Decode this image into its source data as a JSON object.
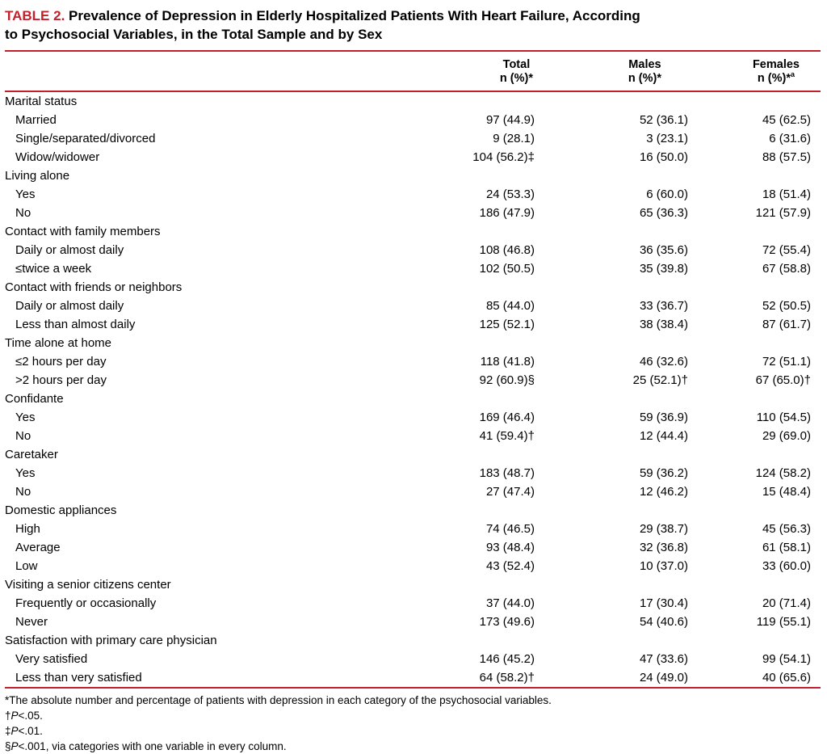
{
  "colors": {
    "accent": "#c2202c",
    "text": "#000000",
    "background": "#ffffff"
  },
  "title": {
    "label": "TABLE 2.",
    "line1": " Prevalence of Depression in Elderly Hospitalized Patients With Heart Failure, According",
    "line2": "to Psychosocial Variables, in the Total Sample and by Sex"
  },
  "table": {
    "columns": {
      "total": {
        "line1": "Total",
        "line2": "n (%)*",
        "sup": ""
      },
      "males": {
        "line1": "Males",
        "line2": "n (%)*",
        "sup": ""
      },
      "females": {
        "line1": "Females",
        "line2": "n (%)*",
        "sup": "a"
      }
    },
    "rows": [
      {
        "type": "group",
        "label": "Marital status"
      },
      {
        "type": "item",
        "label": "Married",
        "total": "97 (44.9)",
        "males": "52 (36.1)",
        "females": "45 (62.5)"
      },
      {
        "type": "item",
        "label": "Single/separated/divorced",
        "total": "9 (28.1)",
        "males": "3 (23.1)",
        "females": "6 (31.6)"
      },
      {
        "type": "item",
        "label": "Widow/widower",
        "total": "104 (56.2)‡",
        "males": "16 (50.0)",
        "females": "88 (57.5)"
      },
      {
        "type": "group",
        "label": "Living alone"
      },
      {
        "type": "item",
        "label": "Yes",
        "total": "24 (53.3)",
        "males": "6 (60.0)",
        "females": "18 (51.4)"
      },
      {
        "type": "item",
        "label": "No",
        "total": "186 (47.9)",
        "males": "65 (36.3)",
        "females": "121 (57.9)"
      },
      {
        "type": "group",
        "label": "Contact with family members"
      },
      {
        "type": "item",
        "label": "Daily or almost daily",
        "total": "108 (46.8)",
        "males": "36 (35.6)",
        "females": "72 (55.4)"
      },
      {
        "type": "item",
        "label": "≤twice a week",
        "total": "102 (50.5)",
        "males": "35 (39.8)",
        "females": "67 (58.8)"
      },
      {
        "type": "group",
        "label": "Contact with friends or neighbors"
      },
      {
        "type": "item",
        "label": "Daily or almost daily",
        "total": "85 (44.0)",
        "males": "33 (36.7)",
        "females": "52 (50.5)"
      },
      {
        "type": "item",
        "label": "Less than almost daily",
        "total": "125 (52.1)",
        "males": "38 (38.4)",
        "females": "87 (61.7)"
      },
      {
        "type": "group",
        "label": "Time alone at home"
      },
      {
        "type": "item",
        "label": "≤2 hours per day",
        "total": "118 (41.8)",
        "males": "46 (32.6)",
        "females": "72 (51.1)"
      },
      {
        "type": "item",
        "label": ">2 hours per day",
        "total": "92 (60.9)§",
        "males": "25 (52.1)†",
        "females": "67 (65.0)†"
      },
      {
        "type": "group",
        "label": "Confidante"
      },
      {
        "type": "item",
        "label": "Yes",
        "total": "169 (46.4)",
        "males": "59 (36.9)",
        "females": "110 (54.5)"
      },
      {
        "type": "item",
        "label": "No",
        "total": "41 (59.4)†",
        "males": "12 (44.4)",
        "females": "29 (69.0)"
      },
      {
        "type": "group",
        "label": "Caretaker"
      },
      {
        "type": "item",
        "label": "Yes",
        "total": "183 (48.7)",
        "males": "59 (36.2)",
        "females": "124 (58.2)"
      },
      {
        "type": "item",
        "label": "No",
        "total": "27 (47.4)",
        "males": "12 (46.2)",
        "females": "15 (48.4)"
      },
      {
        "type": "group",
        "label": "Domestic appliances"
      },
      {
        "type": "item",
        "label": "High",
        "total": "74 (46.5)",
        "males": "29 (38.7)",
        "females": "45 (56.3)"
      },
      {
        "type": "item",
        "label": "Average",
        "total": "93 (48.4)",
        "males": "32 (36.8)",
        "females": "61 (58.1)"
      },
      {
        "type": "item",
        "label": "Low",
        "total": "43 (52.4)",
        "males": "10 (37.0)",
        "females": "33 (60.0)"
      },
      {
        "type": "group",
        "label": "Visiting a senior citizens center"
      },
      {
        "type": "item",
        "label": "Frequently or occasionally",
        "total": "37 (44.0)",
        "males": "17 (30.4)",
        "females": "20 (71.4)"
      },
      {
        "type": "item",
        "label": "Never",
        "total": "173 (49.6)",
        "males": "54 (40.6)",
        "females": "119 (55.1)"
      },
      {
        "type": "group",
        "label": "Satisfaction with primary care physician"
      },
      {
        "type": "item",
        "label": "Very satisfied",
        "total": "146 (45.2)",
        "males": "47 (33.6)",
        "females": "99 (54.1)"
      },
      {
        "type": "item",
        "label": "Less than very satisfied",
        "total": "64 (58.2)†",
        "males": "24 (49.0)",
        "females": "40 (65.6)"
      }
    ]
  },
  "footnotes": [
    {
      "parts": [
        {
          "text": "*The absolute number and percentage of patients with depression in each category of the psychosocial variables.",
          "italic": false
        }
      ]
    },
    {
      "parts": [
        {
          "text": "†",
          "italic": false
        },
        {
          "text": "P",
          "italic": true
        },
        {
          "text": "<.05.",
          "italic": false
        }
      ]
    },
    {
      "parts": [
        {
          "text": "‡",
          "italic": false
        },
        {
          "text": "P",
          "italic": true
        },
        {
          "text": "<.01.",
          "italic": false
        }
      ]
    },
    {
      "parts": [
        {
          "text": "§",
          "italic": false
        },
        {
          "text": "P",
          "italic": true
        },
        {
          "text": "<.001, via categories with one variable in every column.",
          "italic": false
        }
      ]
    }
  ]
}
